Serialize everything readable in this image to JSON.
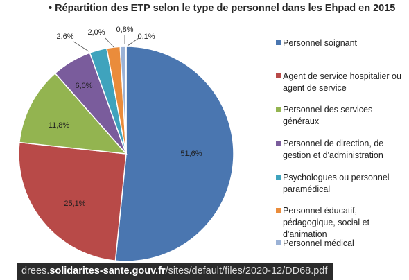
{
  "title": "Répartition des ETP selon le type de personnel dans les Ehpad en 2015",
  "footer": {
    "prefix": "drees.",
    "domain": "solidarites-sante.gouv.fr",
    "path": "/sites/default/files/2020-12/DD68.pdf"
  },
  "chart_data": {
    "type": "pie",
    "title": "Répartition des ETP selon le type de personnel dans les Ehpad en 2015",
    "legend_position": "right",
    "slices": [
      {
        "label": "Personnel soignant",
        "value": 51.6,
        "text": "51,6%",
        "color": "#4a76b0",
        "legend_lines": [
          "Personnel soignant"
        ]
      },
      {
        "label": "Agent de service hospitalier ou agent de service",
        "value": 25.1,
        "text": "25,1%",
        "color": "#b84a48",
        "legend_lines": [
          "Agent de service hospitalier ou",
          "agent de service"
        ]
      },
      {
        "label": "Personnel des services généraux",
        "value": 11.8,
        "text": "11,8%",
        "color": "#93b450",
        "legend_lines": [
          "Personnel des services",
          "généraux"
        ]
      },
      {
        "label": "Personnel de direction, de gestion et d'administration",
        "value": 6.0,
        "text": "6,0%",
        "color": "#7a5c9c",
        "legend_lines": [
          "Personnel de direction, de",
          "gestion et d'administration"
        ]
      },
      {
        "label": "Psychologues ou personnel paramédical",
        "value": 2.6,
        "text": "2,6%",
        "color": "#3fa3bd",
        "legend_lines": [
          "Psychologues ou personnel",
          "paramédical"
        ]
      },
      {
        "label": "Personnel éducatif, pédagogique, social et d'animation",
        "value": 2.0,
        "text": "2,0%",
        "color": "#ea8c3b",
        "legend_lines": [
          "Personnel éducatif,",
          "pédagogique, social et",
          "d'animation"
        ]
      },
      {
        "label": "Personnel médical",
        "value": 0.8,
        "text": "0,8%",
        "color": "#9bb2d6",
        "legend_lines": [
          "Personnel médical"
        ]
      },
      {
        "label": "",
        "value": 0.1,
        "text": "0,1%",
        "color": "#c9d4e8",
        "legend_lines": []
      }
    ]
  }
}
